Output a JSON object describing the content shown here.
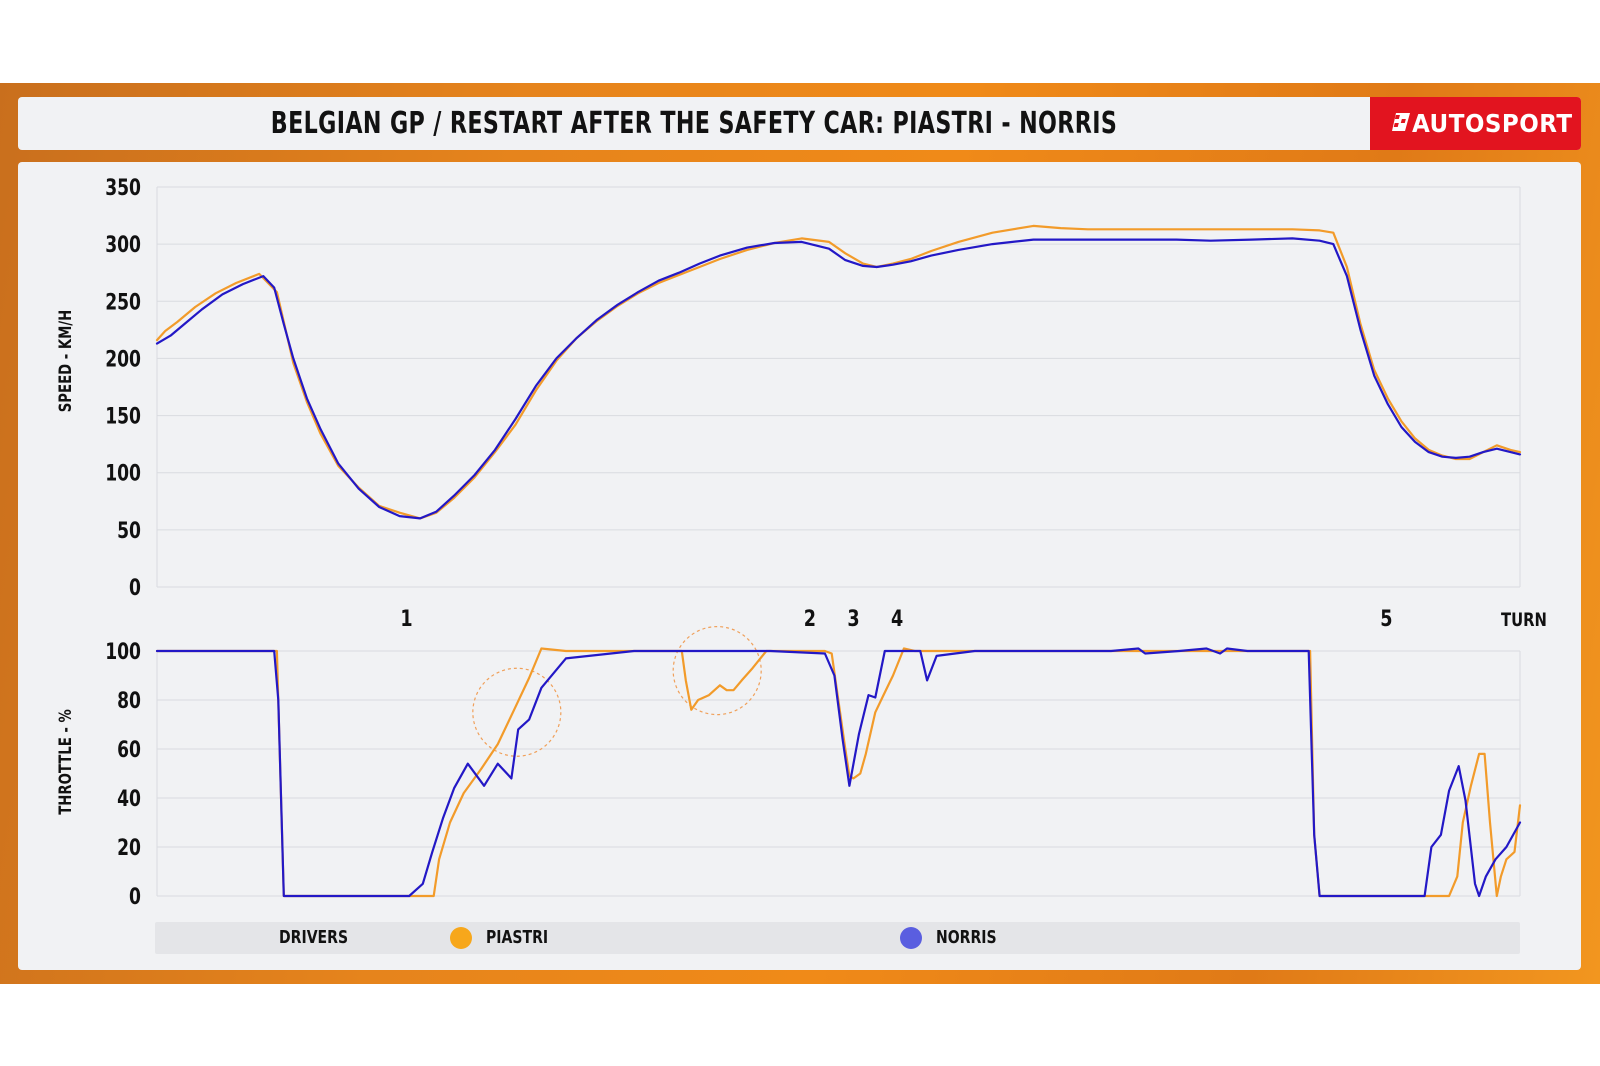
{
  "header": {
    "title": "BELGIAN GP / RESTART AFTER THE SAFETY CAR: PIASTRI - NORRIS",
    "brand": "AUTOSPORT"
  },
  "colors": {
    "accent": "#e2141f",
    "frame": "#e9821b",
    "piastri": "#f29b2a",
    "norris": "#2318c6",
    "norris_legend": "#5a5ee0"
  },
  "legend": {
    "label": "DRIVERS",
    "items": [
      {
        "name": "PIASTRI",
        "color": "#f7a71b"
      },
      {
        "name": "NORRIS",
        "color": "#5a5ee0"
      }
    ]
  },
  "chart_data": [
    {
      "type": "line",
      "ylabel": "SPEED - KM/H",
      "xlabel": "",
      "ylim": [
        0,
        350
      ],
      "yticks": [
        0,
        50,
        100,
        150,
        200,
        250,
        300,
        350
      ],
      "xlim": [
        0,
        1
      ],
      "grid": true,
      "series": [
        {
          "name": "PIASTRI",
          "color": "#f29b2a",
          "x": [
            0,
            0.006,
            0.015,
            0.028,
            0.043,
            0.058,
            0.075,
            0.088,
            0.093,
            0.1,
            0.11,
            0.12,
            0.133,
            0.148,
            0.163,
            0.178,
            0.193,
            0.205,
            0.218,
            0.233,
            0.248,
            0.263,
            0.278,
            0.293,
            0.308,
            0.323,
            0.338,
            0.353,
            0.368,
            0.383,
            0.398,
            0.413,
            0.433,
            0.453,
            0.473,
            0.493,
            0.505,
            0.518,
            0.528,
            0.54,
            0.553,
            0.568,
            0.588,
            0.613,
            0.643,
            0.663,
            0.683,
            0.703,
            0.723,
            0.748,
            0.773,
            0.803,
            0.833,
            0.853,
            0.863,
            0.873,
            0.883,
            0.893,
            0.903,
            0.913,
            0.923,
            0.933,
            0.943,
            0.953,
            0.963,
            0.973,
            0.983,
            0.993,
            1
          ],
          "y": [
            216,
            224,
            232,
            245,
            257,
            266,
            274,
            258,
            232,
            196,
            162,
            134,
            106,
            87,
            71,
            65,
            60,
            65,
            78,
            96,
            118,
            142,
            172,
            198,
            218,
            233,
            246,
            257,
            266,
            273,
            280,
            287,
            295,
            301,
            305,
            302,
            292,
            283,
            280,
            283,
            287,
            294,
            302,
            310,
            316,
            314,
            313,
            313,
            313,
            313,
            313,
            313,
            313,
            312,
            310,
            280,
            230,
            190,
            165,
            145,
            130,
            120,
            115,
            112,
            112,
            118,
            124,
            120,
            118
          ]
        },
        {
          "name": "NORRIS",
          "color": "#2318c6",
          "x": [
            0,
            0.01,
            0.02,
            0.033,
            0.048,
            0.063,
            0.078,
            0.086,
            0.093,
            0.1,
            0.11,
            0.12,
            0.133,
            0.148,
            0.163,
            0.178,
            0.193,
            0.205,
            0.218,
            0.233,
            0.248,
            0.263,
            0.278,
            0.293,
            0.308,
            0.323,
            0.338,
            0.353,
            0.368,
            0.383,
            0.398,
            0.413,
            0.433,
            0.453,
            0.473,
            0.493,
            0.505,
            0.518,
            0.528,
            0.54,
            0.553,
            0.568,
            0.588,
            0.613,
            0.643,
            0.663,
            0.683,
            0.703,
            0.723,
            0.748,
            0.773,
            0.803,
            0.833,
            0.853,
            0.863,
            0.873,
            0.883,
            0.893,
            0.903,
            0.913,
            0.923,
            0.933,
            0.943,
            0.953,
            0.963,
            0.973,
            0.983,
            0.993,
            1
          ],
          "y": [
            213,
            220,
            230,
            243,
            256,
            265,
            272,
            262,
            230,
            200,
            165,
            138,
            108,
            86,
            70,
            62,
            60,
            66,
            80,
            98,
            120,
            147,
            176,
            200,
            218,
            234,
            247,
            258,
            268,
            275,
            283,
            290,
            297,
            301,
            302,
            296,
            286,
            281,
            280,
            282,
            285,
            290,
            295,
            300,
            304,
            304,
            304,
            304,
            304,
            304,
            303,
            304,
            305,
            303,
            300,
            272,
            225,
            185,
            160,
            140,
            127,
            118,
            114,
            113,
            114,
            118,
            121,
            118,
            116
          ]
        }
      ]
    },
    {
      "type": "line",
      "ylabel": "THROTTLE - %",
      "xlabel": "TURN",
      "ylim": [
        0,
        100
      ],
      "yticks": [
        0,
        20,
        40,
        60,
        80,
        100
      ],
      "xlim": [
        0,
        1
      ],
      "grid": true,
      "turns": [
        {
          "label": "1",
          "x": 0.183
        },
        {
          "label": "2",
          "x": 0.479
        },
        {
          "label": "3",
          "x": 0.511
        },
        {
          "label": "4",
          "x": 0.543
        },
        {
          "label": "5",
          "x": 0.902
        }
      ],
      "highlights": [
        {
          "x": 0.264,
          "y": 75,
          "label": ""
        },
        {
          "x": 0.411,
          "y": 92,
          "label": ""
        }
      ],
      "series": [
        {
          "name": "PIASTRI",
          "color": "#f29b2a",
          "x": [
            0,
            0.087,
            0.088,
            0.093,
            0.095,
            0.2,
            0.203,
            0.207,
            0.215,
            0.225,
            0.238,
            0.25,
            0.262,
            0.273,
            0.282,
            0.3,
            0.35,
            0.385,
            0.388,
            0.392,
            0.397,
            0.405,
            0.413,
            0.418,
            0.423,
            0.429,
            0.437,
            0.447,
            0.47,
            0.49,
            0.495,
            0.505,
            0.508,
            0.511,
            0.516,
            0.52,
            0.527,
            0.533,
            0.54,
            0.548,
            0.556,
            0.568,
            0.6,
            0.65,
            0.7,
            0.75,
            0.8,
            0.846,
            0.849,
            0.853,
            0.857,
            0.9,
            0.948,
            0.954,
            0.958,
            0.964,
            0.97,
            0.974,
            0.978,
            0.983,
            0.986,
            0.99,
            0.996,
            1
          ],
          "y": [
            100,
            100,
            100,
            0,
            0,
            0,
            0,
            15,
            30,
            42,
            52,
            62,
            76,
            89,
            101,
            100,
            100,
            100,
            88,
            76,
            80,
            82,
            86,
            84,
            84,
            88,
            93,
            100,
            100,
            100,
            99,
            60,
            49,
            48,
            50,
            58,
            75,
            82,
            90,
            101,
            100,
            100,
            100,
            100,
            100,
            100,
            100,
            100,
            25,
            0,
            0,
            0,
            0,
            8,
            30,
            45,
            58,
            58,
            30,
            0,
            8,
            15,
            18,
            37
          ]
        },
        {
          "name": "NORRIS",
          "color": "#2318c6",
          "x": [
            0,
            0.085,
            0.086,
            0.089,
            0.093,
            0.185,
            0.195,
            0.202,
            0.21,
            0.218,
            0.228,
            0.24,
            0.25,
            0.26,
            0.265,
            0.273,
            0.282,
            0.3,
            0.35,
            0.45,
            0.49,
            0.497,
            0.503,
            0.508,
            0.515,
            0.522,
            0.527,
            0.534,
            0.55,
            0.56,
            0.565,
            0.572,
            0.6,
            0.65,
            0.7,
            0.72,
            0.725,
            0.75,
            0.77,
            0.775,
            0.78,
            0.785,
            0.8,
            0.845,
            0.849,
            0.853,
            0.9,
            0.93,
            0.935,
            0.942,
            0.948,
            0.955,
            0.96,
            0.967,
            0.97,
            0.975,
            0.982,
            0.99,
            1
          ],
          "y": [
            100,
            100,
            100,
            80,
            0,
            0,
            5,
            18,
            32,
            44,
            54,
            45,
            54,
            48,
            68,
            72,
            85,
            97,
            100,
            100,
            99,
            90,
            64,
            45,
            66,
            82,
            81,
            100,
            100,
            100,
            88,
            98,
            100,
            100,
            100,
            101,
            99,
            100,
            101,
            100,
            99,
            101,
            100,
            100,
            25,
            0,
            0,
            0,
            20,
            25,
            43,
            53,
            39,
            5,
            0,
            8,
            15,
            20,
            30
          ]
        }
      ]
    }
  ]
}
